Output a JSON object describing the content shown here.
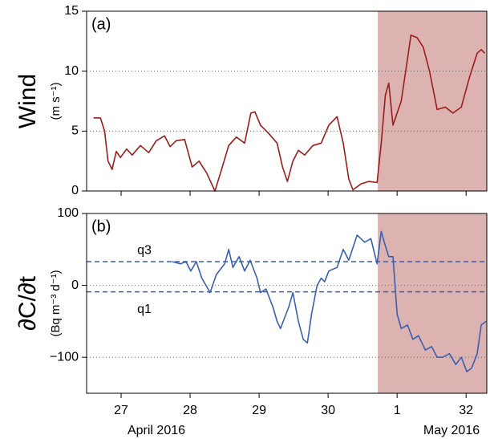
{
  "chart_data": [
    {
      "type": "line",
      "annotation": "(a)",
      "ylabel": "Wind",
      "ylabel_units": "(m s⁻¹)",
      "xlim": [
        26.5,
        32.3
      ],
      "xticks": [
        27,
        28,
        29,
        30,
        {
          "value": 31,
          "label": "1"
        },
        32
      ],
      "ylim": [
        0,
        15
      ],
      "yticks": [
        0,
        5,
        10,
        15
      ],
      "grid": true,
      "highlight_x": [
        30.72,
        32.3
      ],
      "highlight_color": "#ddb3b2",
      "x": [
        26.6,
        26.7,
        26.76,
        26.81,
        26.87,
        26.93,
        26.99,
        27.08,
        27.16,
        27.28,
        27.4,
        27.51,
        27.63,
        27.71,
        27.8,
        27.92,
        28.03,
        28.13,
        28.24,
        28.36,
        28.44,
        28.56,
        28.67,
        28.79,
        28.88,
        28.94,
        29.02,
        29.14,
        29.26,
        29.34,
        29.41,
        29.49,
        29.57,
        29.66,
        29.78,
        29.9,
        30.01,
        30.13,
        30.22,
        30.3,
        30.36,
        30.48,
        30.59,
        30.71,
        30.77,
        30.83,
        30.88,
        30.94,
        31.06,
        31.15,
        31.2,
        31.29,
        31.38,
        31.47,
        31.58,
        31.7,
        31.81,
        31.93,
        32.05,
        32.16,
        32.22,
        32.27
      ],
      "series": [
        {
          "color": "#9b1c1c",
          "values": [
            6.1,
            6.1,
            5.0,
            2.5,
            1.8,
            3.3,
            2.8,
            3.5,
            3.0,
            3.8,
            3.2,
            4.2,
            4.6,
            3.7,
            4.2,
            4.3,
            2.0,
            2.5,
            1.5,
            0.0,
            1.5,
            3.8,
            4.5,
            4.0,
            6.5,
            6.6,
            5.5,
            4.8,
            4.0,
            2.0,
            0.8,
            2.5,
            3.4,
            3.0,
            3.8,
            4.0,
            5.5,
            6.2,
            4.0,
            1.0,
            0.1,
            0.6,
            0.8,
            0.7,
            4.0,
            8.0,
            9.0,
            5.5,
            7.5,
            11.0,
            13.0,
            12.8,
            12.0,
            10.0,
            6.8,
            7.0,
            6.5,
            7.0,
            9.5,
            11.5,
            11.8,
            11.5
          ]
        }
      ]
    },
    {
      "type": "line",
      "annotation": "(b)",
      "ylabel": "∂C/∂t",
      "ylabel_units": "(Bq m⁻³ d⁻¹)",
      "xlim": [
        26.5,
        32.3
      ],
      "xticks": [
        27,
        28,
        29,
        30,
        {
          "value": 31,
          "label": "1"
        },
        32
      ],
      "xlabel_left": "April 2016",
      "xlabel_right": "May 2016",
      "ylim": [
        -150,
        100
      ],
      "yticks": [
        {
          "value": -100,
          "label": "−100"
        },
        0,
        100
      ],
      "grid": true,
      "highlight_x": [
        30.72,
        32.3
      ],
      "highlight_color": "#ddb3b2",
      "hlines": [
        {
          "label": "q3",
          "value": 33
        },
        {
          "label": "q1",
          "value": -9
        }
      ],
      "x": [
        27.74,
        27.86,
        27.94,
        28.01,
        28.09,
        28.17,
        28.29,
        28.38,
        28.5,
        28.56,
        28.62,
        28.71,
        28.79,
        28.87,
        28.97,
        29.02,
        29.1,
        29.2,
        29.26,
        29.31,
        29.37,
        29.43,
        29.49,
        29.57,
        29.64,
        29.7,
        29.76,
        29.84,
        29.9,
        29.95,
        30.01,
        30.13,
        30.22,
        30.3,
        30.42,
        30.53,
        30.62,
        30.71,
        30.77,
        30.83,
        30.88,
        30.94,
        31.0,
        31.06,
        31.15,
        31.23,
        31.31,
        31.41,
        31.5,
        31.58,
        31.66,
        31.76,
        31.85,
        31.93,
        32.01,
        32.08,
        32.16,
        32.22,
        32.29
      ],
      "series": [
        {
          "color": "#3a5fb0",
          "values": [
            33,
            30,
            33,
            20,
            33,
            10,
            -10,
            15,
            30,
            50,
            25,
            40,
            20,
            35,
            10,
            -10,
            -5,
            -30,
            -50,
            -60,
            -45,
            -30,
            -10,
            -50,
            -75,
            -80,
            -40,
            0,
            10,
            5,
            20,
            25,
            50,
            35,
            70,
            60,
            65,
            30,
            75,
            55,
            40,
            40,
            -40,
            -60,
            -55,
            -75,
            -70,
            -90,
            -85,
            -100,
            -100,
            -95,
            -110,
            -100,
            -120,
            -115,
            -95,
            -55,
            -50
          ]
        }
      ]
    }
  ]
}
